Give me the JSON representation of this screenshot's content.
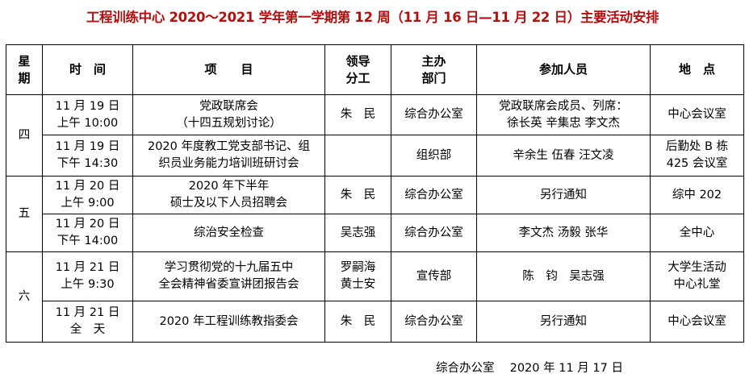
{
  "title": "工程训练中心 2020～2021 学年第一学期第 12 周（11 月 16 日—11 月 22 日）主要活动安排",
  "headers": [
    "星\n期",
    "时　间",
    "项　　目",
    "领导\n分工",
    "主办\n部门",
    "参加人员",
    "地　点"
  ],
  "days": [
    {
      "day": "四",
      "rows": [
        {
          "time": "11 月 19 日\n上午 10:00",
          "item": "党政联席会\n（十四五规划讨论）",
          "leader": "朱　民",
          "dept": "综合办公室",
          "people": "党政联席会成员、列席：\n徐长英  辛集忠  李文杰",
          "place": "中心会议室"
        },
        {
          "time": "11 月 19 日\n下午 14:30",
          "item": "2020 年度教工党支部书记、组\n织员业务能力培训班研讨会",
          "leader": "",
          "dept": "组织部",
          "people": "辛余生  伍春  汪文凌",
          "place": "后勤处 B 栋\n425 会议室"
        }
      ]
    },
    {
      "day": "五",
      "rows": [
        {
          "time": "11 月 20 日\n上午 9:00",
          "item": "2020 年下半年\n硕士及以下人员招聘会",
          "leader": "朱　民",
          "dept": "综合办公室",
          "people": "另行通知",
          "place": "综中 202"
        },
        {
          "time": "11 月 20 日\n下午 14:00",
          "item": "综治安全检查",
          "leader": "吴志强",
          "dept": "综合办公室",
          "people": "李文杰 汤毅 张华",
          "place": "全中心"
        }
      ]
    },
    {
      "day": "六",
      "rows": [
        {
          "time": "11 月 21 日\n上午 9:30",
          "item": "学习贯彻党的十九届五中\n全会精神省委宣讲团报告会",
          "leader": "罗嗣海\n黄士安",
          "dept": "宣传部",
          "people": "陈　钧　吴志强",
          "place": "大学生活动\n中心礼堂"
        },
        {
          "time": "11 月 21 日\n全　天",
          "item": "2020 年工程训练教指委会",
          "leader": "朱　民",
          "dept": "综合办公室",
          "people": "另行通知",
          "place": "中心会议室"
        }
      ]
    }
  ],
  "footer": "综合办公室　 2020 年 11 月 17 日",
  "colors": {
    "title": "#b01010"
  }
}
